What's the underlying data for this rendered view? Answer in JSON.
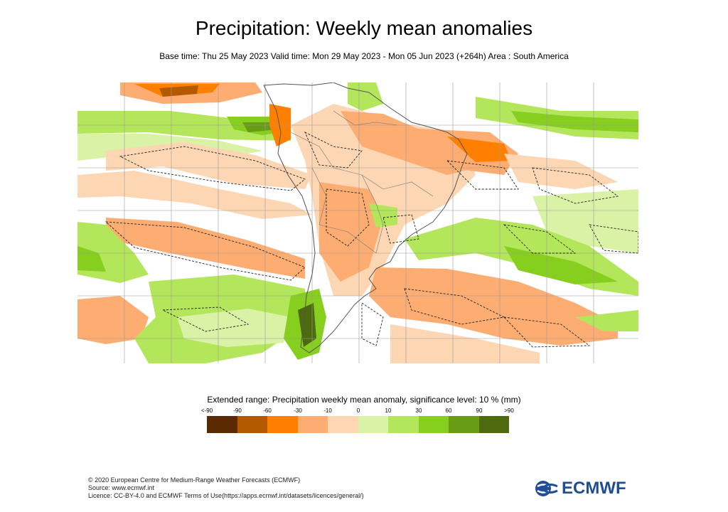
{
  "title": "Precipitation: Weekly mean anomalies",
  "subtitle": "Base time: Thu 25 May 2023 Valid time: Mon 29 May 2023 - Mon 05 Jun 2023 (+264h) Area : South America",
  "map": {
    "area": "South America",
    "colors": {
      "land_border": "#555555",
      "grid": "#9a9a9a",
      "significance_contour": "#222222"
    }
  },
  "legend": {
    "title": "Extended range: Precipitation weekly mean anomaly, significance level: 10 % (mm)",
    "ticks": [
      "<-90",
      "-90",
      "-60",
      "-30",
      "-10",
      "0",
      "10",
      "30",
      "60",
      "90",
      ">90"
    ],
    "colors": [
      "#5c2a00",
      "#b35a00",
      "#ff8000",
      "#fdac72",
      "#fdd6b3",
      "#d9f2a5",
      "#b3e65a",
      "#86cf1e",
      "#679c14",
      "#4d6b0e"
    ]
  },
  "footer": {
    "line1": "© 2020 European Centre for Medium-Range Weather Forecasts (ECMWF)",
    "line2": "Source: www.ecmwf.int",
    "line3": "Licence: CC-BY-4.0 and ECMWF Terms of Use(https://apps.ecmwf.int/datasets/licences/general/)"
  },
  "logo": {
    "text": "ECMWF",
    "color": "#1f4e96",
    "icon": "ecmwf-logo-icon"
  }
}
